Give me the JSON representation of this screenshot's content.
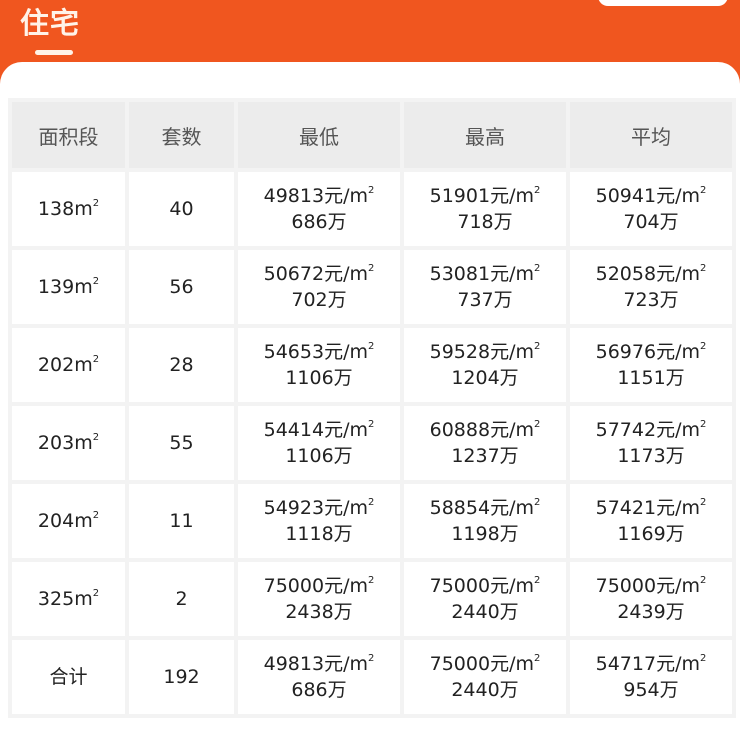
{
  "header": {
    "title": "住宅"
  },
  "table": {
    "columns": [
      "面积段",
      "套数",
      "最低",
      "最高",
      "平均"
    ],
    "unit_price_suffix": "元/m",
    "area_suffix": "m",
    "superscript": "2",
    "total_suffix": "万",
    "rows": [
      {
        "area": "138",
        "count": "40",
        "min": {
          "price": "49813",
          "total": "686"
        },
        "max": {
          "price": "51901",
          "total": "718"
        },
        "avg": {
          "price": "50941",
          "total": "704"
        }
      },
      {
        "area": "139",
        "count": "56",
        "min": {
          "price": "50672",
          "total": "702"
        },
        "max": {
          "price": "53081",
          "total": "737"
        },
        "avg": {
          "price": "52058",
          "total": "723"
        }
      },
      {
        "area": "202",
        "count": "28",
        "min": {
          "price": "54653",
          "total": "1106"
        },
        "max": {
          "price": "59528",
          "total": "1204"
        },
        "avg": {
          "price": "56976",
          "total": "1151"
        }
      },
      {
        "area": "203",
        "count": "55",
        "min": {
          "price": "54414",
          "total": "1106"
        },
        "max": {
          "price": "60888",
          "total": "1237"
        },
        "avg": {
          "price": "57742",
          "total": "1173"
        }
      },
      {
        "area": "204",
        "count": "11",
        "min": {
          "price": "54923",
          "total": "1118"
        },
        "max": {
          "price": "58854",
          "total": "1198"
        },
        "avg": {
          "price": "57421",
          "total": "1169"
        }
      },
      {
        "area": "325",
        "count": "2",
        "min": {
          "price": "75000",
          "total": "2438"
        },
        "max": {
          "price": "75000",
          "total": "2440"
        },
        "avg": {
          "price": "75000",
          "total": "2439"
        }
      }
    ],
    "total_row": {
      "label": "合计",
      "count": "192",
      "min": {
        "price": "49813",
        "total": "686"
      },
      "max": {
        "price": "75000",
        "total": "2440"
      },
      "avg": {
        "price": "54717",
        "total": "954"
      }
    }
  },
  "colors": {
    "accent": "#f0561f",
    "header_cell": "#ececec"
  }
}
